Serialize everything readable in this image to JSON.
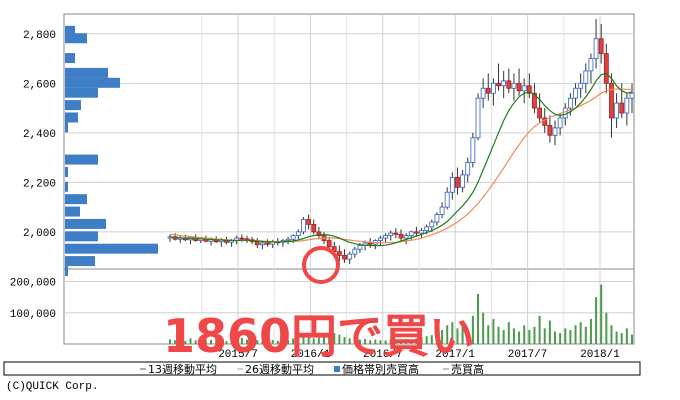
{
  "chart_data": [
    {
      "type": "candlestick",
      "title": "",
      "yticks": [
        "2,800",
        "2,600",
        "2,400",
        "2,200",
        "2,000"
      ],
      "ylim": [
        1850,
        2880
      ],
      "xticks": [
        "2015/7",
        "2016/1",
        "2016/7",
        "2017/1",
        "2017/7",
        "2018/1"
      ],
      "series": [
        {
          "name": "13週移動平均",
          "color": "#1e7c1e"
        },
        {
          "name": "26週移動平均",
          "color": "#f08c5a"
        },
        {
          "name": "価格帯別売買高",
          "color": "#3e7ec6"
        }
      ],
      "ohlc_weekly": [
        [
          1975,
          1990,
          1960,
          1980
        ],
        [
          1980,
          1995,
          1965,
          1970
        ],
        [
          1970,
          1985,
          1955,
          1975
        ],
        [
          1975,
          1988,
          1962,
          1968
        ],
        [
          1968,
          1982,
          1950,
          1978
        ],
        [
          1978,
          1990,
          1960,
          1965
        ],
        [
          1965,
          1980,
          1955,
          1972
        ],
        [
          1972,
          1985,
          1958,
          1962
        ],
        [
          1962,
          1978,
          1945,
          1970
        ],
        [
          1970,
          1982,
          1955,
          1960
        ],
        [
          1960,
          1975,
          1940,
          1968
        ],
        [
          1968,
          1980,
          1950,
          1958
        ],
        [
          1958,
          1972,
          1940,
          1965
        ],
        [
          1965,
          1985,
          1950,
          1975
        ],
        [
          1975,
          1990,
          1960,
          1972
        ],
        [
          1972,
          1985,
          1955,
          1968
        ],
        [
          1968,
          1980,
          1950,
          1960
        ],
        [
          1960,
          1975,
          1935,
          1948
        ],
        [
          1948,
          1962,
          1930,
          1955
        ],
        [
          1955,
          1970,
          1940,
          1950
        ],
        [
          1950,
          1968,
          1935,
          1960
        ],
        [
          1960,
          1975,
          1945,
          1958
        ],
        [
          1958,
          1972,
          1940,
          1965
        ],
        [
          1965,
          1980,
          1950,
          1970
        ],
        [
          1970,
          1990,
          1955,
          1985
        ],
        [
          1985,
          2010,
          1970,
          2000
        ],
        [
          2000,
          2060,
          1990,
          2050
        ],
        [
          2050,
          2070,
          2010,
          2030
        ],
        [
          2030,
          2050,
          1990,
          2000
        ],
        [
          2000,
          2020,
          1970,
          1985
        ],
        [
          1985,
          2000,
          1950,
          1965
        ],
        [
          1965,
          1980,
          1930,
          1940
        ],
        [
          1940,
          1960,
          1900,
          1920
        ],
        [
          1920,
          1945,
          1880,
          1905
        ],
        [
          1905,
          1930,
          1875,
          1890
        ],
        [
          1890,
          1920,
          1870,
          1910
        ],
        [
          1910,
          1940,
          1895,
          1930
        ],
        [
          1930,
          1955,
          1915,
          1945
        ],
        [
          1945,
          1965,
          1925,
          1955
        ],
        [
          1955,
          1975,
          1935,
          1950
        ],
        [
          1950,
          1970,
          1930,
          1965
        ],
        [
          1965,
          1985,
          1945,
          1975
        ],
        [
          1975,
          1995,
          1955,
          1985
        ],
        [
          1985,
          2005,
          1965,
          1995
        ],
        [
          1995,
          2015,
          1975,
          1990
        ],
        [
          1990,
          2010,
          1965,
          1975
        ],
        [
          1975,
          1995,
          1950,
          1985
        ],
        [
          1985,
          2005,
          1965,
          2000
        ],
        [
          2000,
          2020,
          1980,
          1995
        ],
        [
          1995,
          2015,
          1975,
          2005
        ],
        [
          2005,
          2030,
          1990,
          2020
        ],
        [
          2020,
          2050,
          2000,
          2040
        ],
        [
          2040,
          2080,
          2025,
          2070
        ],
        [
          2070,
          2120,
          2055,
          2100
        ],
        [
          2100,
          2180,
          2090,
          2160
        ],
        [
          2160,
          2240,
          2130,
          2220
        ],
        [
          2220,
          2260,
          2150,
          2180
        ],
        [
          2180,
          2250,
          2160,
          2230
        ],
        [
          2230,
          2300,
          2200,
          2280
        ],
        [
          2280,
          2400,
          2260,
          2380
        ],
        [
          2380,
          2560,
          2370,
          2540
        ],
        [
          2540,
          2620,
          2500,
          2580
        ],
        [
          2580,
          2640,
          2530,
          2560
        ],
        [
          2560,
          2620,
          2510,
          2600
        ],
        [
          2600,
          2680,
          2570,
          2590
        ],
        [
          2590,
          2650,
          2540,
          2610
        ],
        [
          2610,
          2660,
          2560,
          2580
        ],
        [
          2580,
          2640,
          2530,
          2600
        ],
        [
          2600,
          2660,
          2550,
          2570
        ],
        [
          2570,
          2620,
          2520,
          2590
        ],
        [
          2590,
          2640,
          2540,
          2560
        ],
        [
          2560,
          2600,
          2480,
          2500
        ],
        [
          2500,
          2560,
          2440,
          2460
        ],
        [
          2460,
          2500,
          2400,
          2430
        ],
        [
          2430,
          2470,
          2360,
          2390
        ],
        [
          2390,
          2450,
          2350,
          2420
        ],
        [
          2420,
          2480,
          2390,
          2460
        ],
        [
          2460,
          2520,
          2430,
          2500
        ],
        [
          2500,
          2560,
          2470,
          2540
        ],
        [
          2540,
          2600,
          2510,
          2580
        ],
        [
          2580,
          2640,
          2540,
          2600
        ],
        [
          2600,
          2680,
          2560,
          2650
        ],
        [
          2650,
          2720,
          2600,
          2700
        ],
        [
          2700,
          2860,
          2660,
          2780
        ],
        [
          2780,
          2840,
          2680,
          2720
        ],
        [
          2720,
          2760,
          2560,
          2600
        ],
        [
          2600,
          2640,
          2380,
          2460
        ],
        [
          2460,
          2560,
          2420,
          2520
        ],
        [
          2520,
          2600,
          2460,
          2480
        ],
        [
          2480,
          2560,
          2430,
          2540
        ],
        [
          2540,
          2600,
          2480,
          2560
        ]
      ],
      "ma13_weekly": [
        1980,
        1978,
        1976,
        1975,
        1974,
        1973,
        1972,
        1970,
        1969,
        1968,
        1967,
        1966,
        1965,
        1965,
        1966,
        1966,
        1965,
        1963,
        1961,
        1960,
        1959,
        1959,
        1960,
        1961,
        1963,
        1967,
        1973,
        1980,
        1985,
        1988,
        1989,
        1987,
        1982,
        1975,
        1966,
        1958,
        1952,
        1948,
        1946,
        1945,
        1944,
        1944,
        1946,
        1950,
        1956,
        1963,
        1969,
        1976,
        1983,
        1990,
        1997,
        2005,
        2015,
        2027,
        2042,
        2062,
        2084,
        2105,
        2130,
        2160,
        2200,
        2250,
        2300,
        2350,
        2400,
        2450,
        2490,
        2520,
        2545,
        2560,
        2565,
        2555,
        2535,
        2510,
        2490,
        2475,
        2470,
        2475,
        2485,
        2500,
        2520,
        2545,
        2575,
        2610,
        2635,
        2640,
        2620,
        2590,
        2570,
        2560,
        2565
      ],
      "ma26_weekly": [
        1990,
        1988,
        1985,
        1983,
        1981,
        1979,
        1977,
        1975,
        1973,
        1971,
        1970,
        1968,
        1967,
        1966,
        1966,
        1965,
        1965,
        1964,
        1963,
        1962,
        1961,
        1960,
        1960,
        1960,
        1961,
        1962,
        1965,
        1968,
        1971,
        1973,
        1975,
        1976,
        1975,
        1973,
        1970,
        1967,
        1964,
        1962,
        1960,
        1958,
        1957,
        1956,
        1956,
        1957,
        1958,
        1960,
        1963,
        1966,
        1970,
        1975,
        1981,
        1988,
        1996,
        2005,
        2015,
        2027,
        2040,
        2055,
        2072,
        2092,
        2115,
        2140,
        2168,
        2197,
        2227,
        2258,
        2290,
        2322,
        2352,
        2380,
        2405,
        2425,
        2440,
        2452,
        2462,
        2470,
        2478,
        2485,
        2492,
        2500,
        2510,
        2520,
        2532,
        2546,
        2560,
        2570,
        2575,
        2577,
        2577,
        2576,
        2575
      ],
      "volume_profile": [
        {
          "price": 2810,
          "volume": 10
        },
        {
          "price": 2780,
          "volume": 22
        },
        {
          "price": 2700,
          "volume": 10
        },
        {
          "price": 2640,
          "volume": 43
        },
        {
          "price": 2600,
          "volume": 55
        },
        {
          "price": 2560,
          "volume": 33
        },
        {
          "price": 2510,
          "volume": 16
        },
        {
          "price": 2460,
          "volume": 13
        },
        {
          "price": 2420,
          "volume": 3
        },
        {
          "price": 2290,
          "volume": 33
        },
        {
          "price": 2240,
          "volume": 3
        },
        {
          "price": 2180,
          "volume": 3
        },
        {
          "price": 2130,
          "volume": 22
        },
        {
          "price": 2080,
          "volume": 15
        },
        {
          "price": 2030,
          "volume": 41
        },
        {
          "price": 1980,
          "volume": 33
        },
        {
          "price": 1930,
          "volume": 93
        },
        {
          "price": 1880,
          "volume": 30
        },
        {
          "price": 1840,
          "volume": 3
        }
      ]
    },
    {
      "type": "bar",
      "name": "売買高",
      "yticks": [
        "200,000",
        "100,000"
      ],
      "ylim": [
        0,
        240000
      ],
      "values": [
        15000,
        12000,
        14000,
        10000,
        18000,
        12000,
        9000,
        11000,
        13000,
        16000,
        11000,
        9000,
        10000,
        12000,
        20000,
        14000,
        10000,
        12000,
        9000,
        11000,
        13000,
        10000,
        15000,
        12000,
        18000,
        22000,
        30000,
        25000,
        18000,
        20000,
        24000,
        28000,
        35000,
        30000,
        22000,
        18000,
        15000,
        14000,
        16000,
        12000,
        14000,
        12000,
        11000,
        15000,
        13000,
        14000,
        16000,
        12000,
        18000,
        22000,
        25000,
        28000,
        40000,
        45000,
        60000,
        70000,
        50000,
        55000,
        48000,
        90000,
        160000,
        100000,
        60000,
        80000,
        55000,
        45000,
        70000,
        50000,
        40000,
        60000,
        45000,
        55000,
        90000,
        50000,
        75000,
        40000,
        35000,
        50000,
        45000,
        60000,
        70000,
        55000,
        80000,
        150000,
        190000,
        100000,
        60000,
        40000,
        35000,
        50000,
        30000
      ]
    }
  ],
  "legend": {
    "ma13": "13週移動平均",
    "ma26": "26週移動平均",
    "volprofile": "価格帯別売買高",
    "volume": "売買高"
  },
  "copyright": "(C)QUICK Corp.",
  "annotation": {
    "text": "1860円で買い",
    "color": "#f04848"
  }
}
